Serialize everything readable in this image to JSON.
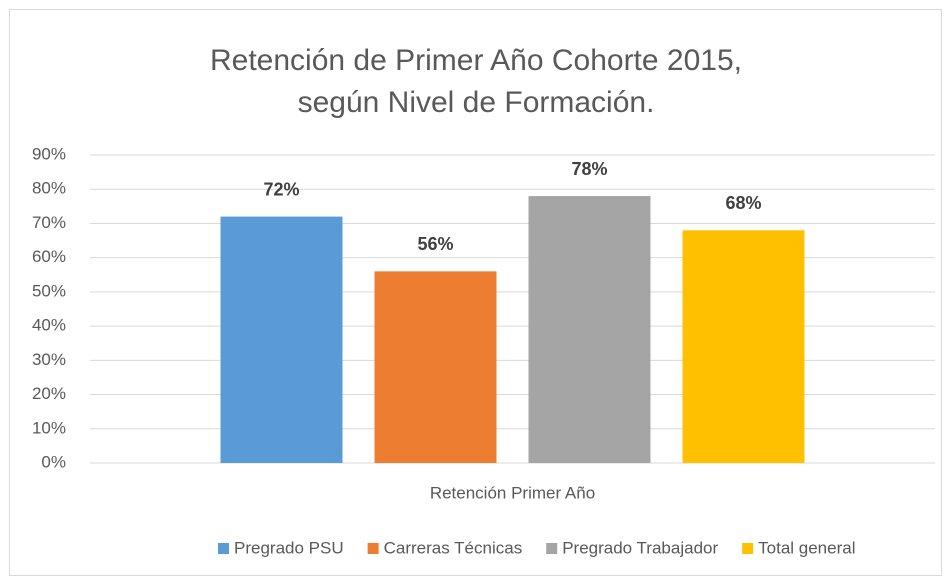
{
  "chart_data": {
    "type": "bar",
    "title": "Retención de Primer Año Cohorte 2015, según Nivel de Formación.",
    "categories": [
      "Retención Primer Año"
    ],
    "series": [
      {
        "name": "Pregrado PSU",
        "color": "#5b9bd5",
        "values": [
          72
        ],
        "value_labels": [
          "72%"
        ]
      },
      {
        "name": "Carreras Técnicas",
        "color": "#ed7d31",
        "values": [
          56
        ],
        "value_labels": [
          "56%"
        ]
      },
      {
        "name": "Pregrado Trabajador",
        "color": "#a5a5a5",
        "values": [
          78
        ],
        "value_labels": [
          "78%"
        ]
      },
      {
        "name": "Total general",
        "color": "#ffc000",
        "values": [
          68
        ],
        "value_labels": [
          "68%"
        ]
      }
    ],
    "ylim": [
      0,
      90
    ],
    "yticks": [
      {
        "value": 0,
        "label": "0%"
      },
      {
        "value": 10,
        "label": "10%"
      },
      {
        "value": 20,
        "label": "20%"
      },
      {
        "value": 30,
        "label": "30%"
      },
      {
        "value": 40,
        "label": "40%"
      },
      {
        "value": 50,
        "label": "50%"
      },
      {
        "value": 60,
        "label": "60%"
      },
      {
        "value": 70,
        "label": "70%"
      },
      {
        "value": 80,
        "label": "80%"
      },
      {
        "value": 90,
        "label": "90%"
      }
    ],
    "grid": true,
    "legend": "bottom"
  }
}
